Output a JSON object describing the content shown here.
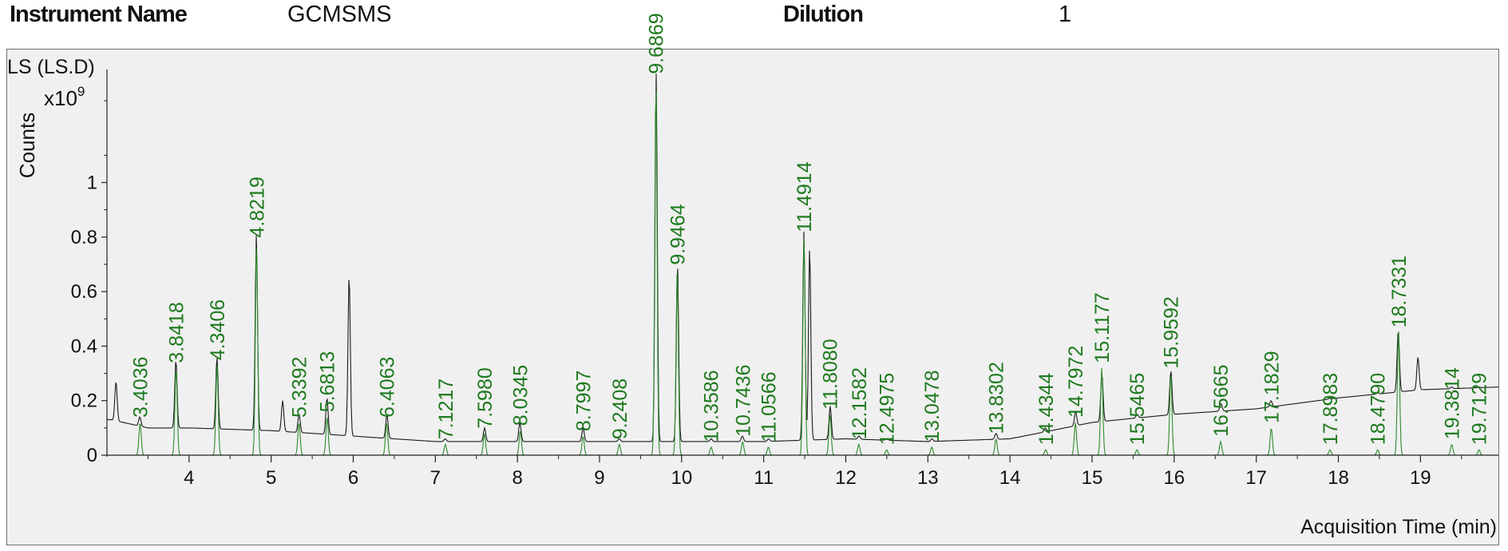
{
  "header": {
    "instrument_label": "Instrument Name",
    "instrument_value": "GCMSMS",
    "dilution_label": "Dilution",
    "dilution_value": "1"
  },
  "colors": {
    "primary_trace": "#1a1a1a",
    "label_green": "#1e7a1e",
    "secondary_trace": "#2e8b2e",
    "plot_background": "#f0f0f0"
  },
  "chart_data": {
    "type": "line",
    "signal_label": "LS (LS.D)",
    "ylabel": "Counts",
    "y_multiplier": "x10",
    "y_exponent": "9",
    "xlabel": "Acquisition Time (min)",
    "xlim": [
      3.0,
      19.95
    ],
    "ylim": [
      0,
      1.4
    ],
    "x_ticks": [
      4,
      5,
      6,
      7,
      8,
      9,
      10,
      11,
      12,
      13,
      14,
      15,
      16,
      17,
      18,
      19
    ],
    "y_ticks": [
      0,
      0.2,
      0.4,
      0.6,
      0.8,
      1
    ],
    "y_tick_labels": [
      "0",
      "0.2",
      "0.4",
      "0.6",
      "0.8",
      "1"
    ],
    "series": [
      {
        "kind": "total",
        "baseline": [
          [
            3.05,
            0.13
          ],
          [
            3.5,
            0.1
          ],
          [
            4.0,
            0.1
          ],
          [
            5.0,
            0.09
          ],
          [
            6.0,
            0.07
          ],
          [
            7.0,
            0.05
          ],
          [
            8.0,
            0.05
          ],
          [
            9.0,
            0.05
          ],
          [
            10.0,
            0.05
          ],
          [
            11.0,
            0.05
          ],
          [
            12.0,
            0.06
          ],
          [
            13.0,
            0.05
          ],
          [
            14.0,
            0.06
          ],
          [
            15.0,
            0.12
          ],
          [
            16.0,
            0.15
          ],
          [
            17.0,
            0.17
          ],
          [
            18.0,
            0.21
          ],
          [
            19.0,
            0.24
          ],
          [
            19.95,
            0.25
          ]
        ],
        "peaks": [
          [
            3.11,
            0.27
          ],
          [
            3.4,
            0.14
          ],
          [
            3.84,
            0.35
          ],
          [
            4.34,
            0.36
          ],
          [
            4.82,
            0.81
          ],
          [
            5.14,
            0.2
          ],
          [
            5.34,
            0.15
          ],
          [
            5.68,
            0.21
          ],
          [
            5.95,
            0.66
          ],
          [
            6.41,
            0.15
          ],
          [
            7.12,
            0.06
          ],
          [
            7.6,
            0.1
          ],
          [
            8.03,
            0.12
          ],
          [
            8.8,
            0.1
          ],
          [
            9.24,
            0.06
          ],
          [
            9.69,
            1.4
          ],
          [
            9.95,
            0.7
          ],
          [
            10.36,
            0.06
          ],
          [
            10.74,
            0.07
          ],
          [
            11.06,
            0.06
          ],
          [
            11.49,
            0.82
          ],
          [
            11.56,
            0.76
          ],
          [
            11.81,
            0.18
          ],
          [
            12.16,
            0.07
          ],
          [
            12.5,
            0.06
          ],
          [
            13.05,
            0.06
          ],
          [
            13.83,
            0.08
          ],
          [
            14.43,
            0.1
          ],
          [
            14.8,
            0.16
          ],
          [
            15.12,
            0.3
          ],
          [
            15.55,
            0.15
          ],
          [
            15.96,
            0.31
          ],
          [
            16.57,
            0.19
          ],
          [
            17.18,
            0.2
          ],
          [
            17.9,
            0.21
          ],
          [
            18.48,
            0.23
          ],
          [
            18.73,
            0.46
          ],
          [
            18.97,
            0.36
          ],
          [
            19.38,
            0.25
          ],
          [
            19.71,
            0.25
          ]
        ]
      },
      {
        "kind": "compound",
        "peaks": [
          [
            3.4036,
            0.12
          ],
          [
            3.8418,
            0.32
          ],
          [
            4.3406,
            0.33
          ],
          [
            4.8219,
            0.78
          ],
          [
            5.3392,
            0.12
          ],
          [
            5.6813,
            0.14
          ],
          [
            6.4063,
            0.12
          ],
          [
            7.1217,
            0.04
          ],
          [
            7.598,
            0.08
          ],
          [
            8.0345,
            0.09
          ],
          [
            8.7997,
            0.07
          ],
          [
            9.2408,
            0.04
          ],
          [
            9.6869,
            1.38
          ],
          [
            9.9464,
            0.68
          ],
          [
            10.3586,
            0.03
          ],
          [
            10.7436,
            0.05
          ],
          [
            11.0566,
            0.03
          ],
          [
            11.4914,
            0.8
          ],
          [
            11.808,
            0.15
          ],
          [
            12.1582,
            0.04
          ],
          [
            12.4975,
            0.02
          ],
          [
            13.0478,
            0.03
          ],
          [
            13.8302,
            0.06
          ],
          [
            14.4344,
            0.02
          ],
          [
            14.7972,
            0.12
          ],
          [
            15.1177,
            0.32
          ],
          [
            15.5465,
            0.02
          ],
          [
            15.9592,
            0.3
          ],
          [
            16.5665,
            0.05
          ],
          [
            17.1829,
            0.1
          ],
          [
            17.8983,
            0.02
          ],
          [
            18.479,
            0.02
          ],
          [
            18.7331,
            0.45
          ],
          [
            19.3814,
            0.04
          ],
          [
            19.7129,
            0.02
          ]
        ]
      }
    ],
    "peak_labels": [
      "3.4036",
      "3.8418",
      "4.3406",
      "4.8219",
      "5.3392",
      "5.6813",
      "6.4063",
      "7.1217",
      "7.5980",
      "8.0345",
      "8.7997",
      "9.2408",
      "9.6869",
      "9.9464",
      "10.3586",
      "10.7436",
      "11.0566",
      "11.4914",
      "11.8080",
      "12.1582",
      "12.4975",
      "13.0478",
      "13.8302",
      "14.4344",
      "14.7972",
      "15.1177",
      "15.5465",
      "15.9592",
      "16.5665",
      "17.1829",
      "17.8983",
      "18.4790",
      "18.7331",
      "19.3814",
      "19.7129"
    ],
    "grid": false
  }
}
